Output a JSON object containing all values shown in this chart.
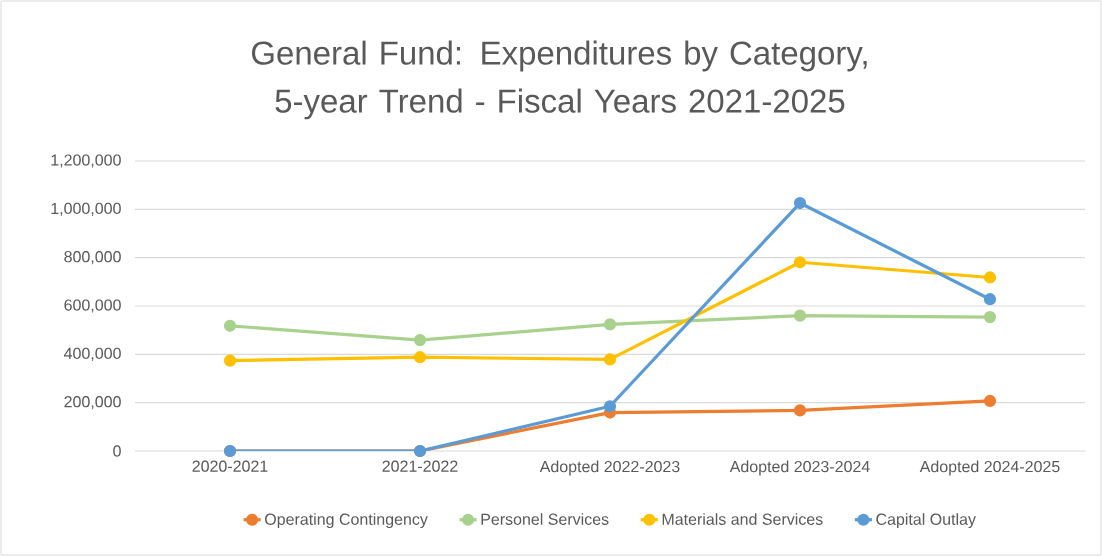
{
  "chart_data": {
    "type": "line",
    "title": "General Fund: Expenditures by Category, 5-year Trend - Fiscal Years 2021-2025",
    "categories": [
      "2020-2021",
      "2021-2022",
      "Adopted 2022-2023",
      "Adopted 2023-2024",
      "Adopted 2024-2025"
    ],
    "series": [
      {
        "name": "Operating Contingency",
        "color": "#ed7d31",
        "values": [
          0,
          0,
          159000,
          168000,
          207000
        ]
      },
      {
        "name": "Personel Services",
        "color": "#a9d18e",
        "values": [
          518000,
          459000,
          524000,
          560000,
          554000
        ]
      },
      {
        "name": "Materials and Services",
        "color": "#ffc000",
        "values": [
          374000,
          388000,
          379000,
          781000,
          718000
        ]
      },
      {
        "name": "Capital Outlay",
        "color": "#5b9bd5",
        "values": [
          0,
          0,
          185000,
          1026000,
          628000
        ]
      }
    ],
    "ylim": [
      0,
      1200000
    ],
    "yticks": [
      0,
      {
        "value": 200000,
        "label": "200,000"
      },
      {
        "value": 400000,
        "label": "400,000"
      },
      {
        "value": 600000,
        "label": "600,000"
      },
      {
        "value": 800000,
        "label": "800,000"
      },
      {
        "value": 1000000,
        "label": "1,000,000"
      },
      {
        "value": 1200000,
        "label": "1,200,000"
      }
    ],
    "grid": "y",
    "legend": "bottom",
    "marker": "circle",
    "line_style": "solid"
  }
}
